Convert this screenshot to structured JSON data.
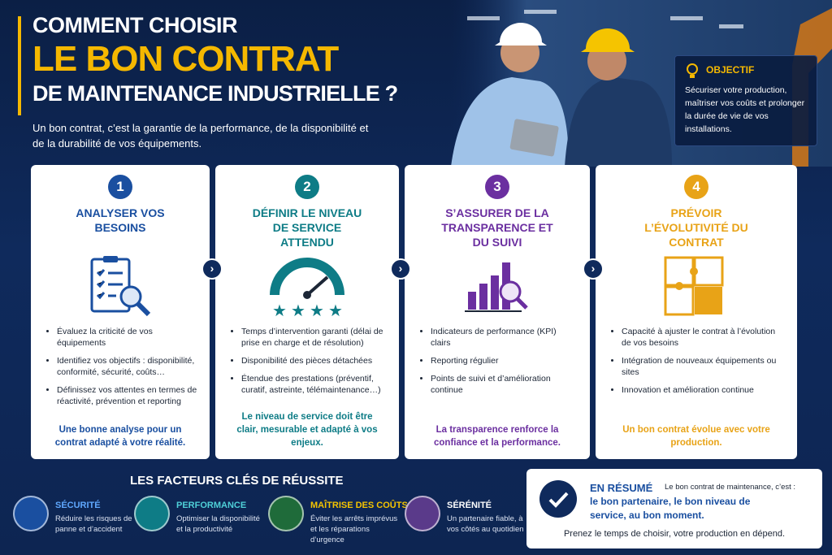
{
  "header": {
    "title_line1": "COMMENT CHOISIR",
    "title_line2": "LE BON CONTRAT",
    "title_line3": "DE MAINTENANCE INDUSTRIELLE ?",
    "intro": "Un bon contrat, c’est la garantie de la performance, de la disponibilité et de la durabilité de vos équipements."
  },
  "objective": {
    "label": "OBJECTIF",
    "text": "Sécuriser votre production, maîtriser vos coûts et prolonger la durée de vie de vos installations."
  },
  "steps": [
    {
      "number": "1",
      "title": "ANALYSER VOS BESOINS",
      "bullets": [
        "Évaluez la criticité de vos équipements",
        "Identifiez vos objectifs : disponibilité, conformité, sécurité, coûts…",
        "Définissez vos attentes en termes de réactivité, prévention et reporting"
      ],
      "conclusion": "Une bonne analyse pour un contrat adapté à votre réalité."
    },
    {
      "number": "2",
      "title": "DÉFINIR LE NIVEAU DE SERVICE ATTENDU",
      "bullets": [
        "Temps d’intervention garanti (délai de prise en charge et de résolution)",
        "Disponibilité des pièces détachées",
        "Étendue des prestations (préventif, curatif, astreinte, télémaintenance…)"
      ],
      "conclusion": "Le niveau de service doit être clair, mesurable et adapté à vos enjeux."
    },
    {
      "number": "3",
      "title": "S’ASSURER DE LA TRANSPARENCE ET DU SUIVI",
      "bullets": [
        "Indicateurs de performance (KPI) clairs",
        "Reporting régulier",
        "Points de suivi et d’amélioration continue"
      ],
      "conclusion": "La transparence renforce la confiance et la performance."
    },
    {
      "number": "4",
      "title": "PRÉVOIR L’ÉVOLUTIVITÉ DU CONTRAT",
      "bullets": [
        "Capacité à ajuster le contrat à l’évolution de vos besoins",
        "Intégration de nouveaux équipements ou sites",
        "Innovation et amélioration continue"
      ],
      "conclusion": "Un bon contrat évolue avec votre production."
    }
  ],
  "factors": {
    "title": "LES FACTEURS CLÉS DE RÉUSSITE",
    "items": [
      {
        "title": "SÉCURITÉ",
        "text": "Réduire les risques de panne et d’accident"
      },
      {
        "title": "PERFORMANCE",
        "text": "Optimiser la disponibilité et la productivité"
      },
      {
        "title": "MAÎTRISE DES COÛTS",
        "text": "Éviter les arrêts imprévus et les réparations d’urgence"
      },
      {
        "title": "SÉRÉNITÉ",
        "text": "Un partenaire fiable, à vos côtés au quotidien"
      }
    ]
  },
  "summary": {
    "label": "EN RÉSUMÉ",
    "intro": "Le bon contrat de maintenance, c’est :",
    "highlight": "le bon partenaire, le bon niveau de service, au bon moment.",
    "footer": "Prenez le temps de choisir, votre production en dépend."
  }
}
